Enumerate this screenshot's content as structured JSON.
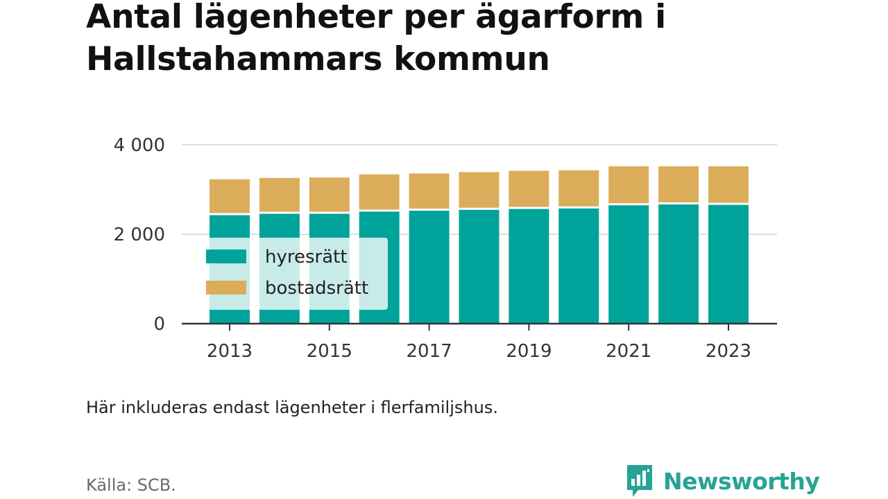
{
  "title": "Antal lägenheter per ägarform i Hallstahammars kommun",
  "note": "Här inkluderas endast lägenheter i flerfamiljshus.",
  "source": "Källa: SCB.",
  "brand": {
    "name": "Newsworthy",
    "icon": "newsworthy-logo-icon",
    "color": "#27a395"
  },
  "chart_data": {
    "type": "bar",
    "stacked": true,
    "x": [
      2013,
      2014,
      2015,
      2016,
      2017,
      2018,
      2019,
      2020,
      2021,
      2022,
      2023
    ],
    "x_tick_labels": [
      "2013",
      "2015",
      "2017",
      "2019",
      "2021",
      "2023"
    ],
    "y_tick_labels": [
      "0",
      "2 000",
      "4 000"
    ],
    "y_ticks": [
      0,
      2000,
      4000
    ],
    "ylim": [
      0,
      4000
    ],
    "grid": true,
    "legend_position": "bottom-left",
    "series": [
      {
        "name": "hyresrätt",
        "color": "#00a39a",
        "values": [
          2450,
          2480,
          2480,
          2530,
          2550,
          2570,
          2590,
          2600,
          2670,
          2690,
          2680
        ]
      },
      {
        "name": "bostadsrätt",
        "color": "#dbad5a",
        "values": [
          780,
          780,
          790,
          810,
          810,
          820,
          830,
          830,
          850,
          830,
          840
        ]
      }
    ]
  }
}
